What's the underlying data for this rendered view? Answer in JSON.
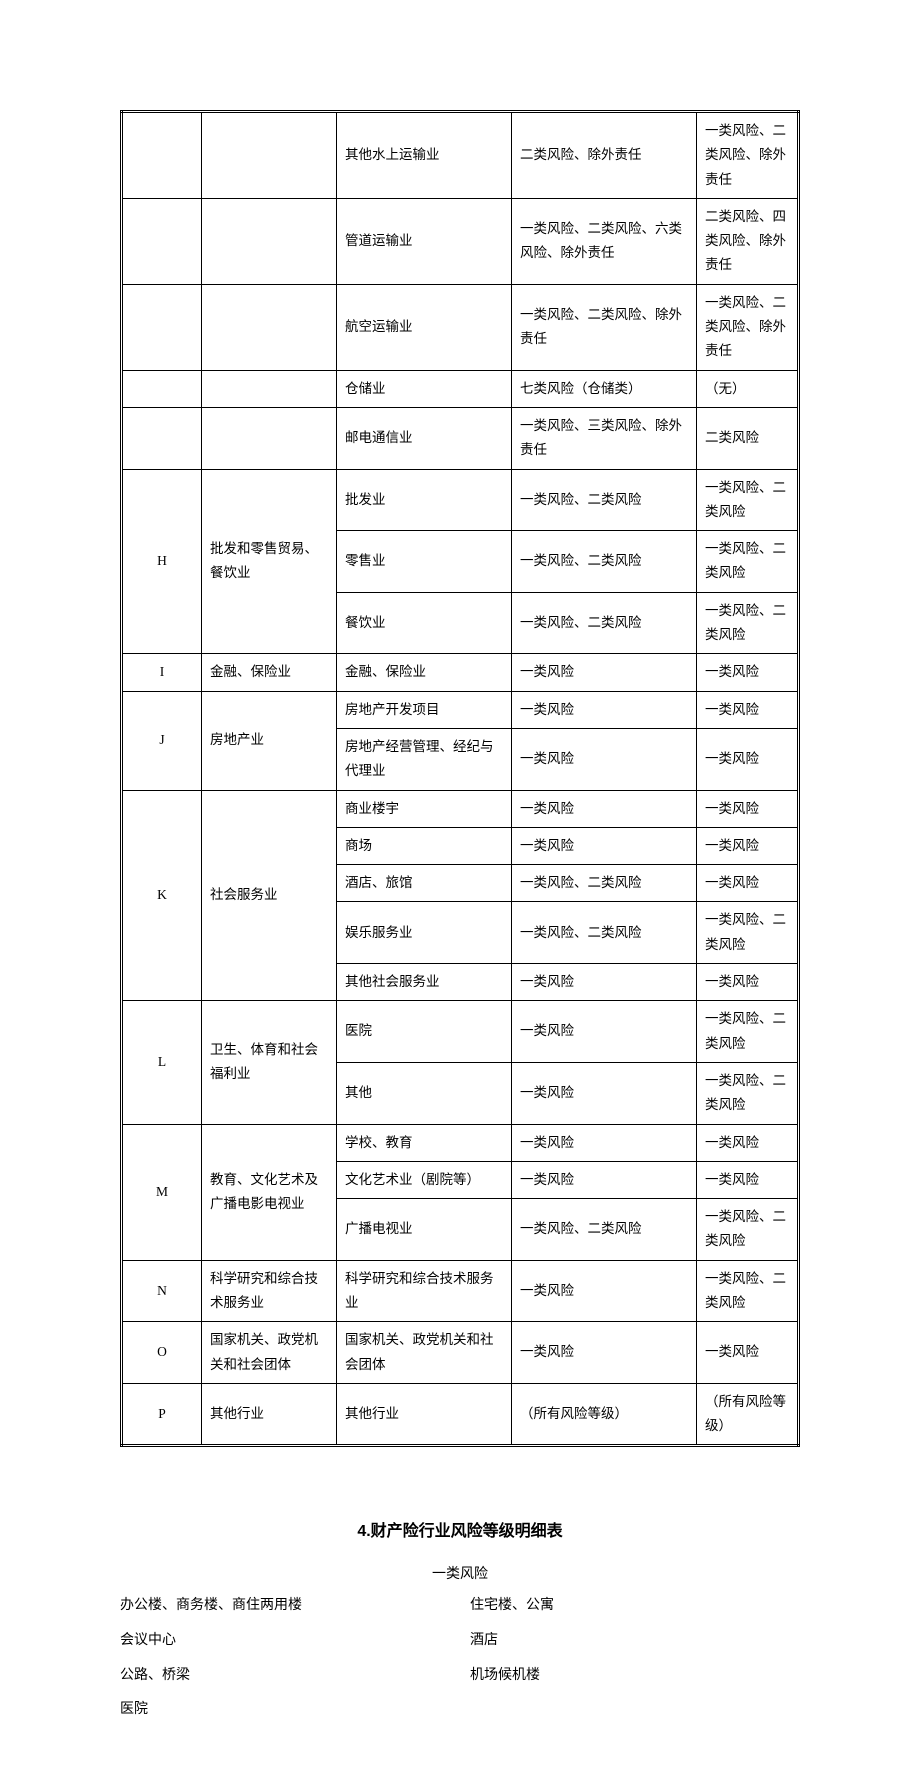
{
  "table": {
    "rows": [
      {
        "code": "",
        "industry": "",
        "sub": "其他水上运输业",
        "r1": "二类风险、除外责任",
        "r2": "一类风险、二类风险、除外责任"
      },
      {
        "code": "",
        "industry": "",
        "sub": "管道运输业",
        "r1": "一类风险、二类风险、六类风险、除外责任",
        "r2": "二类风险、四类风险、除外责任"
      },
      {
        "code": "",
        "industry": "",
        "sub": "航空运输业",
        "r1": "一类风险、二类风险、除外责任",
        "r2": "一类风险、二类风险、除外责任"
      },
      {
        "code": "",
        "industry": "",
        "sub": "仓储业",
        "r1": "七类风险（仓储类）",
        "r2": "（无）"
      },
      {
        "code": "",
        "industry": "",
        "sub": "邮电通信业",
        "r1": "一类风险、三类风险、除外责任",
        "r2": "二类风险"
      },
      {
        "code": "H",
        "industry": "批发和零售贸易、餐饮业",
        "sub": "批发业",
        "r1": "一类风险、二类风险",
        "r2": "一类风险、二类风险",
        "rowspan": 3
      },
      {
        "sub": "零售业",
        "r1": "一类风险、二类风险",
        "r2": "一类风险、二类风险"
      },
      {
        "sub": "餐饮业",
        "r1": "一类风险、二类风险",
        "r2": "一类风险、二类风险"
      },
      {
        "code": "I",
        "industry": "金融、保险业",
        "sub": "金融、保险业",
        "r1": "一类风险",
        "r2": "一类风险",
        "rowspan": 1
      },
      {
        "code": "J",
        "industry": "房地产业",
        "sub": "房地产开发项目",
        "r1": "一类风险",
        "r2": "一类风险",
        "rowspan": 2
      },
      {
        "sub": "房地产经营管理、经纪与代理业",
        "r1": "一类风险",
        "r2": "一类风险"
      },
      {
        "code": "K",
        "industry": "社会服务业",
        "sub": "商业楼宇",
        "r1": "一类风险",
        "r2": "一类风险",
        "rowspan": 5
      },
      {
        "sub": "商场",
        "r1": "一类风险",
        "r2": "一类风险"
      },
      {
        "sub": "酒店、旅馆",
        "r1": "一类风险、二类风险",
        "r2": "一类风险"
      },
      {
        "sub": "娱乐服务业",
        "r1": "一类风险、二类风险",
        "r2": "一类风险、二类风险"
      },
      {
        "sub": "其他社会服务业",
        "r1": "一类风险",
        "r2": "一类风险"
      },
      {
        "code": "L",
        "industry": "卫生、体育和社会福利业",
        "sub": "医院",
        "r1": "一类风险",
        "r2": "一类风险、二类风险",
        "rowspan": 2
      },
      {
        "sub": "其他",
        "r1": "一类风险",
        "r2": "一类风险、二类风险"
      },
      {
        "code": "M",
        "industry": "教育、文化艺术及广播电影电视业",
        "sub": "学校、教育",
        "r1": "一类风险",
        "r2": "一类风险",
        "rowspan": 3
      },
      {
        "sub": "文化艺术业（剧院等）",
        "r1": "一类风险",
        "r2": "一类风险"
      },
      {
        "sub": "广播电视业",
        "r1": "一类风险、二类风险",
        "r2": "一类风险、二类风险"
      },
      {
        "code": "N",
        "industry": "科学研究和综合技术服务业",
        "sub": "科学研究和综合技术服务业",
        "r1": "一类风险",
        "r2": "一类风险、二类风险",
        "rowspan": 1
      },
      {
        "code": "O",
        "industry": "国家机关、政党机关和社会团体",
        "sub": "国家机关、政党机关和社会团体",
        "r1": "一类风险",
        "r2": "一类风险",
        "rowspan": 1
      },
      {
        "code": "P",
        "industry": "其他行业",
        "sub": "其他行业",
        "r1": "（所有风险等级）",
        "r2": "（所有风险等级）",
        "rowspan": 1
      }
    ]
  },
  "section2": {
    "title": "4.财产险行业风险等级明细表",
    "subtitle": "一类风险",
    "items": [
      "办公楼、商务楼、商住两用楼",
      "住宅楼、公寓",
      "会议中心",
      "酒店",
      "公路、桥梁",
      "机场候机楼",
      "医院"
    ]
  }
}
